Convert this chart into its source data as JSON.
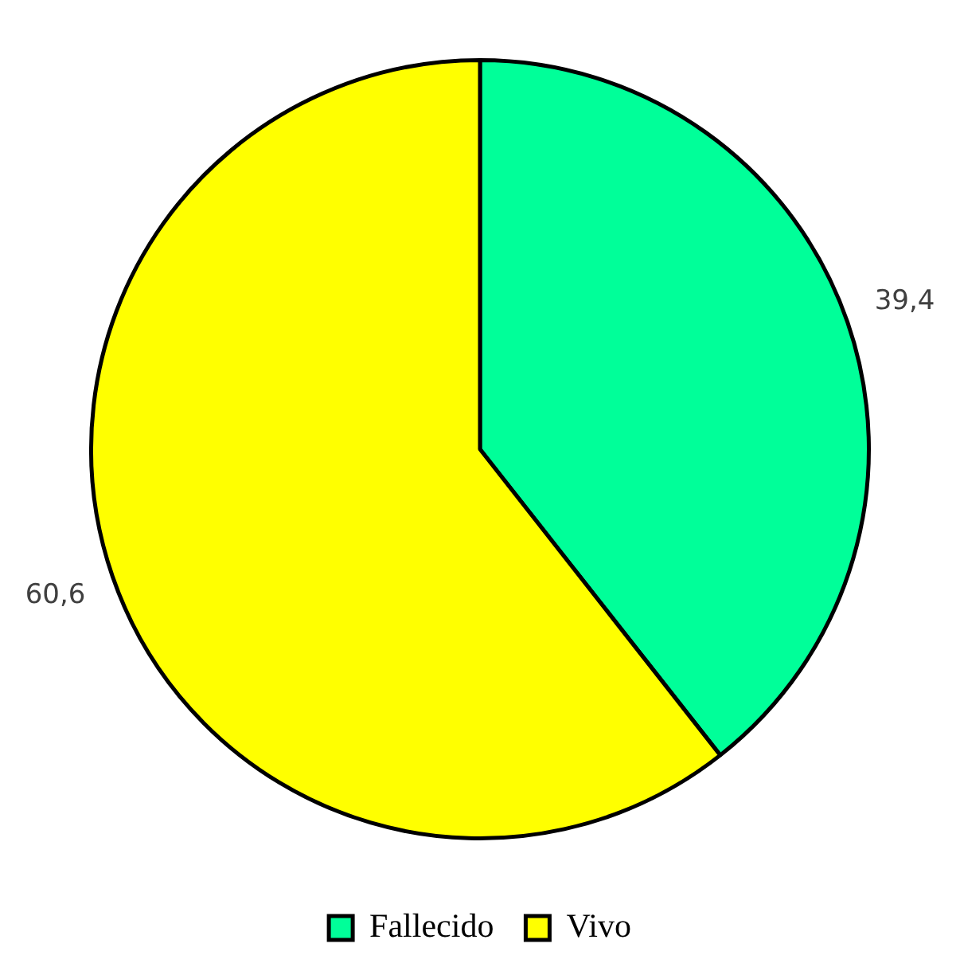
{
  "chart_data": {
    "type": "pie",
    "categories": [
      "Fallecido",
      "Vivo"
    ],
    "values": [
      39.4,
      60.6
    ],
    "colors": [
      "#00ff99",
      "#ffff00"
    ],
    "value_labels": [
      "39,4",
      "60,6"
    ],
    "legend": "bottom"
  }
}
